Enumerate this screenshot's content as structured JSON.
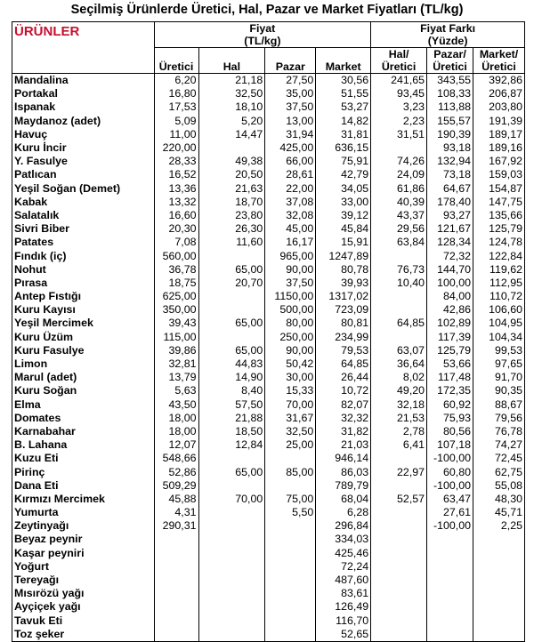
{
  "title": "Seçilmiş Ürünlerde Üretici, Hal, Pazar ve Market Fiyatları (TL/kg)",
  "header": {
    "products": "ÜRÜNLER",
    "price_group": "Fiyat",
    "price_unit": "(TL/kg)",
    "diff_group": "Fiyat Farkı",
    "diff_unit": "(Yüzde)",
    "columns": [
      "Üretici",
      "Hal",
      "Pazar",
      "Market",
      "Hal/ Üretici",
      "Pazar/ Üretici",
      "Market/ Üretici"
    ],
    "accent_color": "#c8102e"
  },
  "rows": [
    [
      "Mandalina",
      "6,20",
      "21,18",
      "27,50",
      "30,56",
      "241,65",
      "343,55",
      "392,86"
    ],
    [
      "Portakal",
      "16,80",
      "32,50",
      "35,00",
      "51,55",
      "93,45",
      "108,33",
      "206,87"
    ],
    [
      "Ispanak",
      "17,53",
      "18,10",
      "37,50",
      "53,27",
      "3,23",
      "113,88",
      "203,80"
    ],
    [
      "Maydanoz (adet)",
      "5,09",
      "5,20",
      "13,00",
      "14,82",
      "2,23",
      "155,57",
      "191,39"
    ],
    [
      "Havuç",
      "11,00",
      "14,47",
      "31,94",
      "31,81",
      "31,51",
      "190,39",
      "189,17"
    ],
    [
      "Kuru İncir",
      "220,00",
      "",
      "425,00",
      "636,15",
      "",
      "93,18",
      "189,16"
    ],
    [
      "Y. Fasulye",
      "28,33",
      "49,38",
      "66,00",
      "75,91",
      "74,26",
      "132,94",
      "167,92"
    ],
    [
      "Patlıcan",
      "16,52",
      "20,50",
      "28,61",
      "42,79",
      "24,09",
      "73,18",
      "159,03"
    ],
    [
      "Yeşil Soğan (Demet)",
      "13,36",
      "21,63",
      "22,00",
      "34,05",
      "61,86",
      "64,67",
      "154,87"
    ],
    [
      "Kabak",
      "13,32",
      "18,70",
      "37,08",
      "33,00",
      "40,39",
      "178,40",
      "147,75"
    ],
    [
      "Salatalık",
      "16,60",
      "23,80",
      "32,08",
      "39,12",
      "43,37",
      "93,27",
      "135,66"
    ],
    [
      "Sivri Biber",
      "20,30",
      "26,30",
      "45,00",
      "45,84",
      "29,56",
      "121,67",
      "125,79"
    ],
    [
      "Patates",
      "7,08",
      "11,60",
      "16,17",
      "15,91",
      "63,84",
      "128,34",
      "124,78"
    ],
    [
      "Fındık (iç)",
      "560,00",
      "",
      "965,00",
      "1247,89",
      "",
      "72,32",
      "122,84"
    ],
    [
      "Nohut",
      "36,78",
      "65,00",
      "90,00",
      "80,78",
      "76,73",
      "144,70",
      "119,62"
    ],
    [
      "Pırasa",
      "18,75",
      "20,70",
      "37,50",
      "39,93",
      "10,40",
      "100,00",
      "112,95"
    ],
    [
      "Antep Fıstığı",
      "625,00",
      "",
      "1150,00",
      "1317,02",
      "",
      "84,00",
      "110,72"
    ],
    [
      "Kuru Kayısı",
      "350,00",
      "",
      "500,00",
      "723,09",
      "",
      "42,86",
      "106,60"
    ],
    [
      "Yeşil Mercimek",
      "39,43",
      "65,00",
      "80,00",
      "80,81",
      "64,85",
      "102,89",
      "104,95"
    ],
    [
      "Kuru Üzüm",
      "115,00",
      "",
      "250,00",
      "234,99",
      "",
      "117,39",
      "104,34"
    ],
    [
      "Kuru Fasulye",
      "39,86",
      "65,00",
      "90,00",
      "79,53",
      "63,07",
      "125,79",
      "99,53"
    ],
    [
      "Limon",
      "32,81",
      "44,83",
      "50,42",
      "64,85",
      "36,64",
      "53,66",
      "97,65"
    ],
    [
      "Marul (adet)",
      "13,79",
      "14,90",
      "30,00",
      "26,44",
      "8,02",
      "117,48",
      "91,70"
    ],
    [
      "Kuru Soğan",
      "5,63",
      "8,40",
      "15,33",
      "10,72",
      "49,20",
      "172,35",
      "90,35"
    ],
    [
      "Elma",
      "43,50",
      "57,50",
      "70,00",
      "82,07",
      "32,18",
      "60,92",
      "88,67"
    ],
    [
      "Domates",
      "18,00",
      "21,88",
      "31,67",
      "32,32",
      "21,53",
      "75,93",
      "79,56"
    ],
    [
      "Karnabahar",
      "18,00",
      "18,50",
      "32,50",
      "31,82",
      "2,78",
      "80,56",
      "76,78"
    ],
    [
      "B. Lahana",
      "12,07",
      "12,84",
      "25,00",
      "21,03",
      "6,41",
      "107,18",
      "74,27"
    ],
    [
      "Kuzu Eti",
      "548,66",
      "",
      "",
      "946,14",
      "",
      "-100,00",
      "72,45"
    ],
    [
      "Pirinç",
      "52,86",
      "65,00",
      "85,00",
      "86,03",
      "22,97",
      "60,80",
      "62,75"
    ],
    [
      "Dana Eti",
      "509,29",
      "",
      "",
      "789,79",
      "",
      "-100,00",
      "55,08"
    ],
    [
      "Kırmızı Mercimek",
      "45,88",
      "70,00",
      "75,00",
      "68,04",
      "52,57",
      "63,47",
      "48,30"
    ],
    [
      "Yumurta",
      "4,31",
      "",
      "5,50",
      "6,28",
      "",
      "27,61",
      "45,71"
    ],
    [
      "Zeytinyağı",
      "290,31",
      "",
      "",
      "296,84",
      "",
      "-100,00",
      "2,25"
    ],
    [
      "Beyaz peynir",
      "",
      "",
      "",
      "334,03",
      "",
      "",
      ""
    ],
    [
      "Kaşar peyniri",
      "",
      "",
      "",
      "425,46",
      "",
      "",
      ""
    ],
    [
      "Yoğurt",
      "",
      "",
      "",
      "72,24",
      "",
      "",
      ""
    ],
    [
      "Tereyağı",
      "",
      "",
      "",
      "487,60",
      "",
      "",
      ""
    ],
    [
      "Mısırözü yağı",
      "",
      "",
      "",
      "83,61",
      "",
      "",
      ""
    ],
    [
      "Ayçiçek yağı",
      "",
      "",
      "",
      "126,49",
      "",
      "",
      ""
    ],
    [
      "Tavuk Eti",
      "",
      "",
      "",
      "116,70",
      "",
      "",
      ""
    ],
    [
      "Toz şeker",
      "",
      "",
      "",
      "52,65",
      "",
      "",
      ""
    ]
  ]
}
